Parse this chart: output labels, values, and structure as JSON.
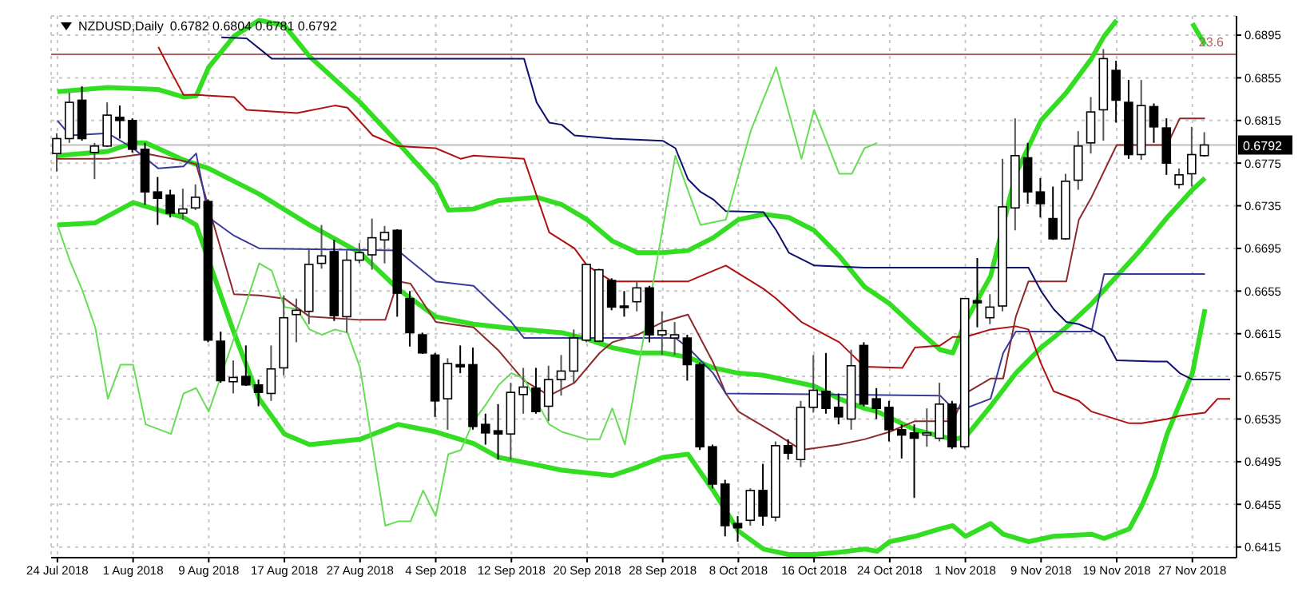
{
  "chart_data": {
    "type": "candlestick",
    "title": "NZDUSD,Daily",
    "subtitle": "0.6782 0.6804 0.6781 0.6792",
    "categories": [
      "24 Jul 2018",
      null,
      null,
      null,
      null,
      null,
      "1 Aug 2018",
      null,
      null,
      null,
      null,
      null,
      "9 Aug 2018",
      null,
      null,
      null,
      null,
      null,
      "17 Aug 2018",
      null,
      null,
      null,
      null,
      null,
      "27 Aug 2018",
      null,
      null,
      null,
      null,
      null,
      "4 Sep 2018",
      null,
      null,
      null,
      null,
      null,
      "12 Sep 2018",
      null,
      null,
      null,
      null,
      null,
      "20 Sep 2018",
      null,
      null,
      null,
      null,
      null,
      "28 Sep 2018",
      null,
      null,
      null,
      null,
      null,
      "8 Oct 2018",
      null,
      null,
      null,
      null,
      null,
      "16 Oct 2018",
      null,
      null,
      null,
      null,
      null,
      "24 Oct 2018",
      null,
      null,
      null,
      null,
      null,
      "1 Nov 2018",
      null,
      null,
      null,
      null,
      null,
      "9 Nov 2018",
      null,
      null,
      null,
      null,
      null,
      "19 Nov 2018",
      null,
      null,
      null,
      null,
      null,
      "27 Nov 2018",
      null,
      null,
      null
    ],
    "ohlc": [
      [
        0.6784,
        0.6803,
        0.6767,
        0.6798
      ],
      [
        0.6798,
        0.6841,
        0.6794,
        0.6832
      ],
      [
        0.6834,
        0.6847,
        0.6796,
        0.6798
      ],
      [
        0.6785,
        0.6794,
        0.676,
        0.6791
      ],
      [
        0.6791,
        0.6832,
        0.679,
        0.682
      ],
      [
        0.6818,
        0.6829,
        0.6798,
        0.6815
      ],
      [
        0.6815,
        0.6817,
        0.6785,
        0.6788
      ],
      [
        0.6788,
        0.6794,
        0.6736,
        0.6748
      ],
      [
        0.6748,
        0.6762,
        0.6717,
        0.6742
      ],
      [
        0.6745,
        0.675,
        0.6724,
        0.6728
      ],
      [
        0.6728,
        0.6751,
        0.6722,
        0.6732
      ],
      [
        0.6733,
        0.6755,
        0.6731,
        0.6743
      ],
      [
        0.6739,
        0.6741,
        0.6607,
        0.6609
      ],
      [
        0.6608,
        0.6617,
        0.6569,
        0.6571
      ],
      [
        0.657,
        0.659,
        0.6559,
        0.6574
      ],
      [
        0.6575,
        0.6604,
        0.6566,
        0.6567
      ],
      [
        0.6567,
        0.6572,
        0.6547,
        0.656
      ],
      [
        0.6559,
        0.6604,
        0.6552,
        0.6582
      ],
      [
        0.6583,
        0.6651,
        0.6576,
        0.663
      ],
      [
        0.6633,
        0.6648,
        0.6607,
        0.6637
      ],
      [
        0.6636,
        0.6694,
        0.6624,
        0.668
      ],
      [
        0.6681,
        0.6717,
        0.6676,
        0.6688
      ],
      [
        0.6692,
        0.6703,
        0.6627,
        0.6632
      ],
      [
        0.6631,
        0.6693,
        0.6616,
        0.6684
      ],
      [
        0.6684,
        0.67,
        0.6681,
        0.6691
      ],
      [
        0.6689,
        0.6723,
        0.6675,
        0.6705
      ],
      [
        0.6703,
        0.6716,
        0.6681,
        0.671
      ],
      [
        0.6712,
        0.6713,
        0.6631,
        0.6653
      ],
      [
        0.6648,
        0.6655,
        0.6603,
        0.6616
      ],
      [
        0.6614,
        0.6616,
        0.6596,
        0.6597
      ],
      [
        0.6595,
        0.6597,
        0.6537,
        0.6552
      ],
      [
        0.6554,
        0.6592,
        0.6525,
        0.6587
      ],
      [
        0.6586,
        0.6604,
        0.6578,
        0.6584
      ],
      [
        0.6586,
        0.6602,
        0.6525,
        0.6528
      ],
      [
        0.653,
        0.654,
        0.6511,
        0.6522
      ],
      [
        0.6524,
        0.6549,
        0.6497,
        0.6521
      ],
      [
        0.6521,
        0.6569,
        0.6497,
        0.656
      ],
      [
        0.6558,
        0.6583,
        0.654,
        0.6565
      ],
      [
        0.6564,
        0.6583,
        0.654,
        0.6542
      ],
      [
        0.6547,
        0.6585,
        0.6533,
        0.6572
      ],
      [
        0.6572,
        0.6595,
        0.6557,
        0.658
      ],
      [
        0.658,
        0.6619,
        0.6569,
        0.6611
      ],
      [
        0.6609,
        0.668,
        0.6607,
        0.668
      ],
      [
        0.6608,
        0.6676,
        0.6607,
        0.6675
      ],
      [
        0.6665,
        0.6667,
        0.6637,
        0.664
      ],
      [
        0.6641,
        0.6655,
        0.6631,
        0.664
      ],
      [
        0.6645,
        0.6664,
        0.6636,
        0.6658
      ],
      [
        0.6658,
        0.666,
        0.6607,
        0.6614
      ],
      [
        0.6614,
        0.6636,
        0.6595,
        0.6618
      ],
      [
        0.6611,
        0.6626,
        0.6595,
        0.6614
      ],
      [
        0.6611,
        0.6614,
        0.6571,
        0.6586
      ],
      [
        0.6586,
        0.6588,
        0.6506,
        0.6509
      ],
      [
        0.6509,
        0.6511,
        0.647,
        0.6474
      ],
      [
        0.6474,
        0.6478,
        0.6425,
        0.6435
      ],
      [
        0.6437,
        0.6444,
        0.642,
        0.6433
      ],
      [
        0.644,
        0.647,
        0.6435,
        0.6468
      ],
      [
        0.6468,
        0.6493,
        0.6435,
        0.6444
      ],
      [
        0.6443,
        0.6514,
        0.6439,
        0.651
      ],
      [
        0.651,
        0.6516,
        0.6497,
        0.6503
      ],
      [
        0.6497,
        0.6552,
        0.649,
        0.6546
      ],
      [
        0.6546,
        0.6595,
        0.6541,
        0.6562
      ],
      [
        0.6561,
        0.6597,
        0.654,
        0.6545
      ],
      [
        0.6546,
        0.6559,
        0.653,
        0.6537
      ],
      [
        0.6535,
        0.66,
        0.6525,
        0.6585
      ],
      [
        0.6604,
        0.6607,
        0.6547,
        0.6549
      ],
      [
        0.6554,
        0.6564,
        0.6535,
        0.6545
      ],
      [
        0.6546,
        0.6552,
        0.6514,
        0.6525
      ],
      [
        0.6525,
        0.653,
        0.6498,
        0.652
      ],
      [
        0.6522,
        0.653,
        0.6461,
        0.6517
      ],
      [
        0.652,
        0.6545,
        0.6509,
        0.6522
      ],
      [
        0.6517,
        0.6569,
        0.6514,
        0.6549
      ],
      [
        0.6549,
        0.6552,
        0.6507,
        0.6509
      ],
      [
        0.6509,
        0.6648,
        0.6507,
        0.6648
      ],
      [
        0.6646,
        0.6686,
        0.6621,
        0.6644
      ],
      [
        0.663,
        0.6652,
        0.6624,
        0.664
      ],
      [
        0.6641,
        0.6779,
        0.6636,
        0.6734
      ],
      [
        0.6733,
        0.6817,
        0.6712,
        0.6782
      ],
      [
        0.678,
        0.6794,
        0.6737,
        0.6748
      ],
      [
        0.6748,
        0.6761,
        0.6724,
        0.6737
      ],
      [
        0.6723,
        0.6753,
        0.6703,
        0.6704
      ],
      [
        0.6704,
        0.6765,
        0.6703,
        0.6758
      ],
      [
        0.6759,
        0.6805,
        0.675,
        0.6791
      ],
      [
        0.6794,
        0.6837,
        0.6784,
        0.6823
      ],
      [
        0.6825,
        0.6882,
        0.6796,
        0.6873
      ],
      [
        0.6862,
        0.6871,
        0.6813,
        0.6834
      ],
      [
        0.6832,
        0.6853,
        0.6779,
        0.6783
      ],
      [
        0.6783,
        0.6853,
        0.6778,
        0.6829
      ],
      [
        0.6828,
        0.6831,
        0.6794,
        0.6809
      ],
      [
        0.6808,
        0.6817,
        0.6764,
        0.6775
      ],
      [
        0.6755,
        0.677,
        0.6751,
        0.6764
      ],
      [
        0.6765,
        0.6809,
        0.6753,
        0.6783
      ],
      [
        0.6782,
        0.6804,
        0.6781,
        0.6792
      ],
      null,
      null
    ],
    "annotations": [
      {
        "text": "23.6",
        "y": 0.6877
      }
    ],
    "series": [
      {
        "type": "line",
        "color": "#33dd22",
        "values": [
          0.6842,
          null,
          null,
          null,
          0.6846,
          null,
          null,
          null,
          0.6844,
          null,
          0.6837,
          0.6838,
          0.6865,
          null,
          0.6894,
          null,
          0.6909,
          null,
          0.6904,
          null,
          0.6875,
          null,
          null,
          null,
          0.6832,
          null,
          null,
          0.6794,
          null,
          null,
          0.6755,
          0.6731,
          null,
          0.6732,
          null,
          0.674,
          null,
          null,
          0.6743,
          null,
          0.6736,
          null,
          0.6722,
          null,
          0.6702,
          null,
          0.6691,
          null,
          0.6691,
          null,
          0.6693,
          null,
          0.6705,
          null,
          0.6722,
          null,
          0.6727,
          null,
          0.6724,
          null,
          0.6712,
          null,
          0.6688,
          null,
          0.6659,
          null,
          0.6643,
          null,
          0.6621,
          null,
          0.66,
          0.6597,
          0.6626,
          null,
          0.6669,
          null,
          0.6765,
          null,
          0.6815,
          null,
          0.6841,
          null,
          0.6873,
          0.6894,
          0.6909,
          null,
          null,
          null,
          null,
          null,
          null,
          null,
          null,
          null
        ]
      },
      {
        "type": "line",
        "color": "#33dd22",
        "values": [
          null,
          null,
          null,
          null,
          null,
          null,
          null,
          null,
          null,
          null,
          null,
          null,
          null,
          null,
          null,
          null,
          null,
          null,
          null,
          null,
          null,
          null,
          null,
          null,
          null,
          null,
          null,
          null,
          null,
          null,
          null,
          null,
          null,
          null,
          null,
          null,
          null,
          null,
          null,
          null,
          null,
          null,
          null,
          null,
          null,
          null,
          null,
          null,
          null,
          null,
          null,
          null,
          null,
          null,
          null,
          null,
          null,
          null,
          null,
          null,
          null,
          null,
          null,
          null,
          null,
          null,
          null,
          null,
          null,
          null,
          null,
          null,
          null,
          null,
          null,
          null,
          null,
          null,
          null,
          null,
          null,
          null,
          null,
          null,
          null,
          null,
          null,
          null,
          null,
          null,
          0.6906,
          0.6886,
          null,
          null
        ]
      },
      {
        "type": "line",
        "color": "#33dd22",
        "values": [
          0.6782,
          null,
          null,
          null,
          0.6786,
          null,
          0.6794,
          0.6794,
          null,
          null,
          0.6778,
          null,
          0.677,
          null,
          null,
          null,
          0.6746,
          null,
          null,
          null,
          0.6717,
          null,
          null,
          null,
          0.6691,
          null,
          null,
          0.6657,
          null,
          null,
          0.6631,
          null,
          null,
          0.6624,
          null,
          null,
          0.662,
          null,
          null,
          null,
          0.6616,
          null,
          0.661,
          null,
          0.6602,
          null,
          0.6597,
          null,
          0.6597,
          null,
          0.6593,
          null,
          0.6583,
          null,
          0.6578,
          null,
          0.6576,
          null,
          0.6571,
          null,
          0.6566,
          null,
          0.6554,
          null,
          0.6545,
          0.6542,
          null,
          null,
          0.6525,
          null,
          null,
          0.6516,
          0.6518,
          null,
          0.6547,
          null,
          0.6578,
          null,
          0.6602,
          null,
          0.6621,
          null,
          0.6643,
          null,
          0.6669,
          null,
          0.6695,
          null,
          0.6724,
          null,
          0.675,
          0.6761,
          null,
          null
        ]
      },
      {
        "type": "line",
        "color": "#33dd22",
        "values": [
          0.6717,
          null,
          null,
          0.6719,
          null,
          null,
          0.6738,
          null,
          0.6731,
          null,
          0.6724,
          0.6717,
          null,
          null,
          0.6616,
          null,
          0.6554,
          null,
          0.6521,
          null,
          0.6511,
          null,
          null,
          null,
          0.6516,
          null,
          null,
          0.653,
          null,
          null,
          0.6523,
          null,
          null,
          0.6512,
          null,
          0.6499,
          null,
          null,
          0.6492,
          null,
          0.6487,
          null,
          null,
          null,
          0.6482,
          null,
          0.649,
          null,
          0.6499,
          null,
          0.6502,
          null,
          0.6468,
          null,
          0.643,
          null,
          0.6413,
          null,
          0.6408,
          null,
          0.6408,
          null,
          0.641,
          null,
          0.6413,
          0.6411,
          0.642,
          null,
          0.6425,
          null,
          0.6432,
          0.6435,
          0.6425,
          null,
          0.6437,
          0.6427,
          null,
          0.642,
          null,
          0.6425,
          null,
          null,
          0.6427,
          0.6423,
          null,
          0.6432,
          0.6454,
          0.6482,
          0.6521,
          null,
          0.6578,
          0.6638,
          null,
          null
        ]
      },
      {
        "type": "line",
        "color": "#8b2a2a",
        "values": [
          0.6779,
          null,
          null,
          null,
          0.6779,
          null,
          null,
          0.6784,
          null,
          null,
          0.6777,
          0.6774,
          null,
          null,
          0.6652,
          null,
          0.6651,
          null,
          0.6648,
          null,
          0.6631,
          null,
          null,
          null,
          0.6628,
          null,
          0.6628,
          0.6664,
          0.6662,
          null,
          0.6626,
          null,
          null,
          0.6621,
          null,
          0.6599,
          null,
          0.6571,
          null,
          0.6557,
          null,
          0.6569,
          null,
          0.6597,
          0.6607,
          null,
          0.6614,
          null,
          0.6626,
          null,
          0.6633,
          null,
          0.6588,
          0.6559,
          0.6542,
          null,
          null,
          0.6521,
          null,
          0.6506,
          null,
          null,
          0.6511,
          null,
          0.6516,
          null,
          0.6523,
          null,
          0.6533,
          null,
          null,
          0.6533,
          0.6559,
          null,
          0.6573,
          0.6573,
          0.6631,
          0.6664,
          null,
          null,
          0.6664,
          0.6722,
          0.6743,
          null,
          0.6792,
          null,
          null,
          null,
          0.6792,
          0.6817,
          null,
          0.6817,
          null,
          null
        ]
      },
      {
        "type": "line",
        "color": "#3a3a9a",
        "values": [
          0.6815,
          0.6801,
          null,
          null,
          0.6803,
          null,
          0.6789,
          null,
          0.677,
          null,
          0.6772,
          0.6784,
          0.6724,
          null,
          0.6707,
          null,
          0.6695,
          null,
          null,
          null,
          null,
          null,
          null,
          null,
          null,
          null,
          null,
          0.6693,
          null,
          null,
          0.6664,
          null,
          null,
          0.666,
          null,
          null,
          0.6626,
          0.6611,
          null,
          null,
          null,
          null,
          null,
          null,
          null,
          null,
          null,
          null,
          null,
          0.6611,
          0.6602,
          null,
          0.6578,
          0.6559,
          null,
          null,
          null,
          null,
          null,
          null,
          null,
          null,
          null,
          null,
          null,
          null,
          null,
          null,
          null,
          null,
          0.6557,
          0.6545,
          0.6545,
          null,
          0.6554,
          0.6597,
          0.6617,
          null,
          null,
          null,
          null,
          null,
          0.6617,
          0.6671,
          null,
          null,
          null,
          null,
          null,
          null,
          null,
          0.6671,
          null,
          null
        ]
      },
      {
        "type": "line",
        "color": "#b01010",
        "values": [
          null,
          null,
          null,
          null,
          null,
          null,
          null,
          null,
          0.6884,
          0.6861,
          0.6839,
          0.6839,
          null,
          null,
          0.6837,
          0.6825,
          null,
          null,
          null,
          0.6822,
          null,
          null,
          0.6829,
          0.6827,
          null,
          0.6801,
          null,
          0.6791,
          null,
          null,
          0.6789,
          null,
          0.6779,
          0.6782,
          null,
          null,
          null,
          0.6779,
          null,
          0.671,
          null,
          0.6695,
          0.6679,
          null,
          0.6664,
          null,
          null,
          null,
          null,
          null,
          0.6664,
          0.6669,
          null,
          0.6679,
          null,
          null,
          0.6657,
          0.6648,
          null,
          0.6626,
          null,
          null,
          0.6607,
          null,
          0.6584,
          null,
          null,
          0.6583,
          0.6602,
          null,
          0.6604,
          0.6612,
          0.6612,
          null,
          0.6619,
          null,
          0.6622,
          0.6619,
          0.6587,
          0.6561,
          null,
          0.6552,
          0.6542,
          null,
          null,
          0.6531,
          0.6531,
          null,
          0.6535,
          0.6538,
          null,
          0.6541,
          0.6554,
          0.6554
        ]
      },
      {
        "type": "line",
        "color": "#10106e",
        "values": [
          null,
          null,
          null,
          null,
          null,
          null,
          null,
          null,
          null,
          null,
          null,
          null,
          null,
          0.6893,
          null,
          0.6892,
          null,
          0.6873,
          null,
          null,
          null,
          null,
          null,
          null,
          null,
          null,
          null,
          null,
          null,
          null,
          null,
          null,
          null,
          null,
          null,
          null,
          null,
          0.6873,
          0.6832,
          0.6813,
          0.6811,
          0.6801,
          null,
          null,
          0.6798,
          null,
          null,
          null,
          0.6796,
          0.6789,
          0.676,
          0.6748,
          0.6741,
          0.673,
          null,
          null,
          0.6729,
          0.6712,
          0.6691,
          null,
          0.6679,
          null,
          null,
          null,
          0.6677,
          null,
          null,
          null,
          null,
          null,
          null,
          null,
          null,
          null,
          null,
          null,
          null,
          0.6677,
          0.6655,
          0.6638,
          0.6626,
          0.6624,
          0.6619,
          0.6612,
          0.659,
          null,
          null,
          0.6589,
          0.6589,
          0.6578,
          0.6572,
          null,
          null,
          0.6572
        ]
      },
      {
        "type": "line",
        "color": "#66dd55",
        "values": [
          0.6717,
          0.6683,
          0.6655,
          0.6621,
          0.6554,
          0.6586,
          0.6586,
          0.653,
          null,
          0.6521,
          0.6559,
          0.6564,
          0.6542,
          null,
          null,
          0.6645,
          0.6681,
          0.6674,
          0.664,
          0.6638,
          0.6619,
          0.6614,
          0.6619,
          0.6616,
          0.6583,
          null,
          0.6435,
          0.6439,
          0.6439,
          0.6468,
          0.6444,
          0.6502,
          0.6506,
          0.6533,
          0.6549,
          0.6567,
          0.6578,
          0.6573,
          null,
          0.653,
          0.6523,
          null,
          0.6516,
          0.6516,
          0.6545,
          0.6511,
          null,
          null,
          null,
          0.6782,
          null,
          0.6717,
          null,
          0.6722,
          null,
          0.6806,
          null,
          0.6865,
          null,
          0.6779,
          0.6825,
          null,
          0.6765,
          0.6765,
          0.6789,
          0.6794,
          null,
          null,
          null,
          null,
          null,
          null,
          null,
          null,
          null,
          null,
          null,
          null,
          null,
          null,
          null,
          null,
          null,
          null,
          null,
          null,
          null,
          null,
          null,
          null,
          null,
          null,
          null,
          null
        ]
      }
    ],
    "ylim": [
      0.6405,
      0.6913
    ],
    "yticks": [
      0.6415,
      0.6455,
      0.6495,
      0.6535,
      0.6575,
      0.6615,
      0.6655,
      0.6695,
      0.6735,
      0.6775,
      0.6815,
      0.6855,
      0.6895
    ],
    "ref_lines": [
      {
        "axis": "y",
        "value": 0.6877,
        "color": "#b06060"
      },
      {
        "axis": "y",
        "value": 0.6792,
        "label": "0.6792",
        "color": "#c0c0c0"
      }
    ],
    "grid": true,
    "legend": false,
    "marker": "none"
  }
}
